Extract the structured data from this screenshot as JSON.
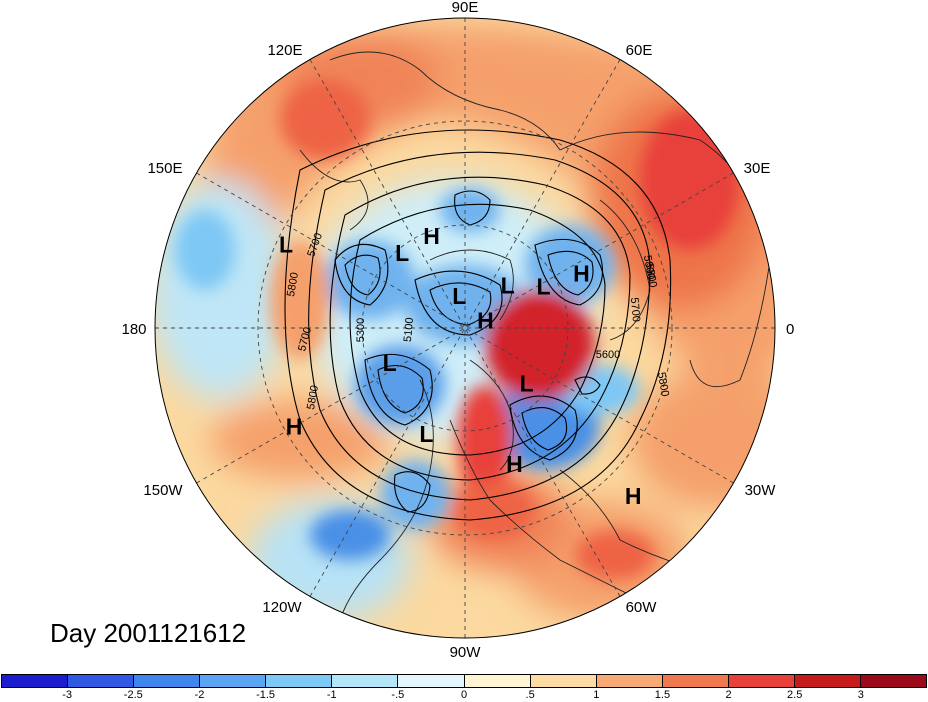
{
  "title": "Day 2001121612",
  "longitude_labels": [
    "90E",
    "60E",
    "30E",
    "0",
    "30W",
    "60W",
    "90W",
    "120W",
    "150W",
    "180",
    "150E",
    "120E"
  ],
  "centers": [
    {
      "type": "H",
      "lon": 110,
      "lat": 55
    },
    {
      "type": "L",
      "lon": 28,
      "lat": 58
    },
    {
      "type": "H",
      "lon": 25,
      "lat": 45
    },
    {
      "type": "L",
      "lon": 155,
      "lat": 25
    },
    {
      "type": "L",
      "lon": 130,
      "lat": 55
    },
    {
      "type": "L",
      "lon": 45,
      "lat": 68
    },
    {
      "type": "L",
      "lon": 100,
      "lat": 78
    },
    {
      "type": "H",
      "lon": 20,
      "lat": 82
    },
    {
      "type": "L",
      "lon": -155,
      "lat": 60
    },
    {
      "type": "L",
      "lon": -42,
      "lat": 60
    },
    {
      "type": "H",
      "lon": -150,
      "lat": 25
    },
    {
      "type": "L",
      "lon": -110,
      "lat": 50
    },
    {
      "type": "H",
      "lon": -70,
      "lat": 40
    },
    {
      "type": "H",
      "lon": -45,
      "lat": 15
    }
  ],
  "contour_labels": [
    "5800",
    "5700",
    "5300",
    "5100",
    "5700",
    "5800",
    "5800",
    "5700",
    "5800",
    "5600",
    "5800"
  ],
  "colorbar": {
    "ticks": [
      "-3",
      "-2.5",
      "-2",
      "-1.5",
      "-1",
      "-.5",
      "0",
      ".5",
      "1",
      "1.5",
      "2",
      "2.5",
      "3"
    ],
    "colors": [
      "#1c1ccf",
      "#2f58e3",
      "#3f86ec",
      "#5aa6f2",
      "#7ec8f5",
      "#b4e6f9",
      "#e3f6fb",
      "#fff5d2",
      "#fcdca2",
      "#f8a974",
      "#f2784f",
      "#e8413a",
      "#c51b1b",
      "#9b0a1b"
    ]
  }
}
